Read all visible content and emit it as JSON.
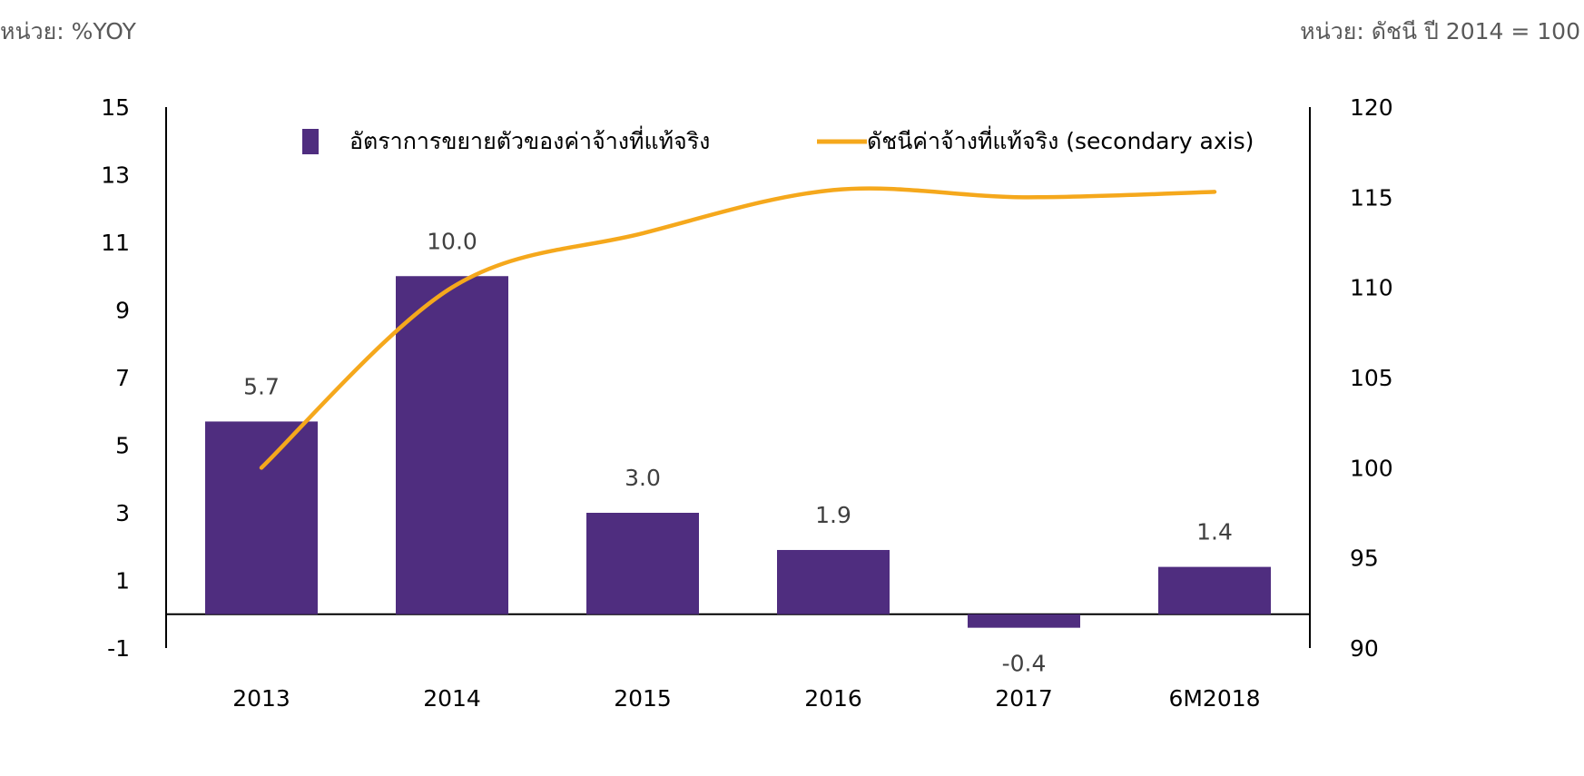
{
  "chart_data": {
    "type": "bar",
    "left_unit": "หน่วย: %YOY",
    "right_unit": "หน่วย: ดัชนี ปี 2014 = 100",
    "categories": [
      "2013",
      "2014",
      "2015",
      "2016",
      "2017",
      "6M2018"
    ],
    "series": [
      {
        "name": "อัตราการขยายตัวของค่าจ้างที่แท้จริง",
        "type": "bar",
        "axis": "left",
        "values": [
          5.7,
          10.0,
          3.0,
          1.9,
          -0.4,
          1.4
        ],
        "labels": [
          "5.7",
          "10.0",
          "3.0",
          "1.9",
          "-0.4",
          "1.4"
        ],
        "color": "#4F2D7F"
      },
      {
        "name": "ดัชนีค่าจ้างที่แท้จริง (secondary axis)",
        "type": "line",
        "axis": "right",
        "values": [
          100.0,
          110.0,
          113.0,
          115.4,
          115.0,
          115.3
        ],
        "color": "#F5A81C"
      }
    ],
    "y_left": {
      "min": -1,
      "max": 15,
      "ticks": [
        "15",
        "13",
        "11",
        "9",
        "7",
        "5",
        "3",
        "1",
        "-1"
      ]
    },
    "y_right": {
      "min": 90,
      "max": 120,
      "ticks": [
        "120",
        "115",
        "110",
        "105",
        "100",
        "95",
        "90"
      ]
    },
    "grid": false,
    "legend_position": "top"
  }
}
